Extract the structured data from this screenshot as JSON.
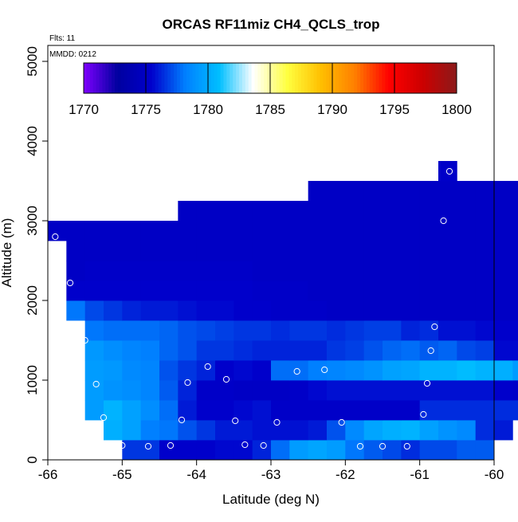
{
  "chart_data": {
    "type": "heatmap",
    "title": "ORCAS RF11miz CH4_QCLS_trop",
    "annotations": [
      "Flts: 11",
      "MMDD: 0212"
    ],
    "xlabel": "Latitude (deg N)",
    "ylabel": "Altitude (m)",
    "xlim": [
      -66,
      -60
    ],
    "ylim": [
      0,
      5200
    ],
    "x_ticks": [
      -66,
      -65,
      -64,
      -63,
      -62,
      -61,
      -60
    ],
    "y_ticks": [
      0,
      1000,
      2000,
      3000,
      4000,
      5000
    ],
    "grid": false,
    "colorbar": {
      "range": [
        1770,
        1800
      ],
      "ticks": [
        1770,
        1775,
        1780,
        1785,
        1790,
        1795,
        1800
      ],
      "stops": [
        "#7f00ff",
        "#00009f",
        "#0000cc",
        "#0080ff",
        "#00bfff",
        "#ffffff",
        "#ffff40",
        "#ffbf00",
        "#ff7f00",
        "#ff0000",
        "#cc0000",
        "#8b1a1a"
      ]
    },
    "cell_width_deg": 0.25,
    "cell_height_m": 250,
    "rows": [
      {
        "alt_start": 0,
        "lat_start": -65,
        "values": [
          1776.6,
          1776.6,
          1775.4,
          1775.4,
          1775.4,
          1775.6,
          1775.6,
          1776.2,
          1777.8,
          1779.4,
          1779.8,
          1779.4,
          1778.0,
          1777.4,
          1777.0,
          1776.4,
          1777.0,
          1777.0,
          1777.4,
          1777.4
        ]
      },
      {
        "alt_start": 250,
        "lat_start": -65.25,
        "values": [
          1780.2,
          1779.6,
          1778.2,
          1778.0,
          1777.2,
          1776.6,
          1776.0,
          1776.0,
          1775.8,
          1775.8,
          1775.8,
          1776.0,
          1777.2,
          1778.6,
          1779.8,
          1780.2,
          1780.4,
          1779.6,
          1779.0,
          1778.6,
          1776.4,
          1776.0
        ]
      },
      {
        "alt_start": 500,
        "lat_start": -65.5,
        "values": [
          1779.4,
          1780.4,
          1779.6,
          1778.8,
          1777.8,
          1776.0,
          1775.4,
          1775.4,
          1775.6,
          1775.8,
          1775.2,
          1775.2,
          1775.2,
          1775.2,
          1775.2,
          1775.2,
          1775.2,
          1775.2,
          1776.4,
          1776.4,
          1776.4,
          1776.4,
          1776.4,
          1776.4,
          1776.4,
          1776.2,
          1776.4
        ]
      },
      {
        "alt_start": 750,
        "lat_start": -65.5,
        "values": [
          1779.4,
          1779.0,
          1778.8,
          1778.4,
          1777.4,
          1776.2,
          1775.2,
          1775.2,
          1775.0,
          1775.0,
          1775.0,
          1775.2,
          1775.6,
          1775.8,
          1775.8,
          1775.8,
          1775.8,
          1775.8,
          1775.8,
          1775.8,
          1775.8,
          1775.8,
          1775.4,
          1775.2,
          1775.2,
          1775.0,
          1775.0,
          1775.0
        ]
      },
      {
        "alt_start": 1000,
        "lat_start": -65.5,
        "values": [
          1779.4,
          1779.2,
          1778.6,
          1778.4,
          1777.2,
          1776.6,
          1776.2,
          1775.4,
          1775.6,
          1775.4,
          1777.8,
          1777.8,
          1778.2,
          1778.4,
          1778.6,
          1779.0,
          1779.6,
          1779.8,
          1780.4,
          1780.4,
          1780.8,
          1780.4,
          1780.2,
          1779.4,
          1778.0,
          1777.2,
          1776.2,
          1775.2
        ]
      },
      {
        "alt_start": 1250,
        "lat_start": -65.5,
        "values": [
          1779.2,
          1778.8,
          1778.4,
          1778.2,
          1777.6,
          1777.2,
          1776.6,
          1776.6,
          1776.4,
          1776.2,
          1776.2,
          1776.2,
          1776.2,
          1776.6,
          1776.8,
          1777.2,
          1777.6,
          1777.8,
          1777.4,
          1777.6,
          1777.0,
          1776.8,
          1775.6,
          1775.6,
          1775.4,
          1775.2,
          1775.0,
          1775.0,
          1775.0
        ]
      },
      {
        "alt_start": 1500,
        "lat_start": -65.5,
        "values": [
          1778.0,
          1777.8,
          1777.8,
          1777.8,
          1777.6,
          1777.2,
          1777.0,
          1776.8,
          1776.6,
          1776.6,
          1776.4,
          1776.6,
          1776.6,
          1776.4,
          1776.6,
          1776.8,
          1776.8,
          1776.2,
          1776.4,
          1775.8,
          1775.8,
          1775.6,
          1775.4,
          1775.4,
          1775.2,
          1775.2,
          1775.0,
          1775.0,
          1775.0
        ]
      },
      {
        "alt_start": 1750,
        "lat_start": -65.75,
        "values": [
          1778.0,
          1777.0,
          1776.6,
          1776.2,
          1776.0,
          1776.0,
          1775.8,
          1775.6,
          1775.6,
          1775.4,
          1775.4,
          1775.2,
          1775.2,
          1775.2,
          1775.0,
          1775.0,
          1775.0,
          1775.0,
          1775.0,
          1775.0,
          1775.0,
          1775.0,
          1775.0,
          1775.0,
          1775.0,
          1775.0,
          1775.0,
          1775.0,
          1775.0,
          1775.0
        ]
      },
      {
        "alt_start": 2000,
        "lat_start": -65.75,
        "values": [
          1775.4,
          1775.4,
          1775.4,
          1775.4,
          1775.4,
          1775.4,
          1775.4,
          1775.4,
          1775.4,
          1775.4,
          1775.2,
          1775.2,
          1775.2,
          1775.0,
          1775.0,
          1775.0,
          1775.0,
          1775.0,
          1775.0,
          1775.0,
          1775.0,
          1775.0,
          1775.0,
          1775.0,
          1775.0,
          1775.0,
          1775.0,
          1775.0,
          1775.0,
          1775.0
        ]
      },
      {
        "alt_start": 2250,
        "lat_start": -65.75,
        "values": [
          1775.0,
          1775.2,
          1775.2,
          1775.2,
          1775.2,
          1775.2,
          1775.2,
          1775.2,
          1775.2,
          1775.2,
          1775.0,
          1775.0,
          1775.0,
          1775.0,
          1775.0,
          1775.0,
          1775.0,
          1775.0,
          1775.0,
          1775.0,
          1775.0,
          1775.0,
          1775.0,
          1775.0,
          1775.0,
          1775.0,
          1775.0,
          1775.0,
          1775.0,
          1775.0
        ]
      },
      {
        "alt_start": 2500,
        "lat_start": -65.75,
        "values": [
          1775.0,
          1775.0,
          1775.0,
          1775.0,
          1775.0,
          1775.0,
          1775.0,
          1775.0,
          1775.0,
          1775.0,
          1775.0,
          1775.0,
          1775.0,
          1775.0,
          1775.0,
          1775.0,
          1775.0,
          1775.0,
          1775.0,
          1775.0,
          1775.0,
          1775.0,
          1775.0,
          1775.0,
          1775.0,
          1775.0,
          1775.0,
          1775.0,
          1775.0,
          1775.0
        ]
      },
      {
        "alt_start": 2750,
        "lat_start": -66,
        "values": [
          1775.0,
          1775.0,
          1775.0,
          1775.0,
          1775.0,
          1775.0,
          1775.0,
          1775.0,
          1775.0,
          1775.0,
          1775.0,
          1775.0,
          1775.0,
          1775.0,
          1775.0,
          1775.0,
          1775.0,
          1775.0,
          1775.0,
          1775.0,
          1775.0,
          1775.0,
          1775.0,
          1775.0,
          1775.0,
          1775.0,
          1775.0,
          1775.0,
          1775.0,
          1775.0,
          1775.0
        ]
      },
      {
        "alt_start": 3000,
        "lat_start": -64.25,
        "values": [
          1775.0,
          1775.0,
          1775.0,
          1775.0,
          1775.0,
          1775.0,
          1775.0,
          1775.0,
          1775.0,
          1775.0,
          1775.0,
          1775.0,
          1775.0,
          1775.0,
          1775.0,
          1775.0,
          1775.0,
          1775.0,
          1775.0,
          1775.0,
          1775.0,
          1775.0,
          1775.0,
          1775.0,
          1775.0,
          1775.0,
          1775.0,
          1775.0,
          1775.0,
          1775.0,
          1775.0,
          1775.0,
          1775.0,
          1775.0,
          1775.0
        ]
      },
      {
        "alt_start": 3250,
        "lat_start": -62.5,
        "values": [
          1775.0,
          1775.0,
          1775.0,
          1775.0,
          1775.0,
          1775.0,
          1775.0,
          1775.0,
          1775.0,
          1775.0,
          1775.0,
          1775.0,
          1775.0,
          1775.0,
          1775.0,
          1775.0,
          1775.0,
          1775.0,
          1775.0,
          1775.0,
          1775.0,
          1775.0,
          1775.0,
          1775.0,
          1775.0,
          1775.0,
          1775.0,
          1775.0,
          1775.0
        ]
      },
      {
        "alt_start": 3500,
        "lat_start": -60.75,
        "values": [
          1775.2
        ]
      }
    ],
    "points": [
      {
        "x": -65.9,
        "y": 2800
      },
      {
        "x": -65.7,
        "y": 2220
      },
      {
        "x": -65.5,
        "y": 1500
      },
      {
        "x": -65.35,
        "y": 950
      },
      {
        "x": -65.25,
        "y": 530
      },
      {
        "x": -65.0,
        "y": 180
      },
      {
        "x": -64.65,
        "y": 170
      },
      {
        "x": -64.35,
        "y": 180
      },
      {
        "x": -64.2,
        "y": 500
      },
      {
        "x": -64.12,
        "y": 970
      },
      {
        "x": -63.85,
        "y": 1170
      },
      {
        "x": -63.6,
        "y": 1010
      },
      {
        "x": -63.48,
        "y": 490
      },
      {
        "x": -63.35,
        "y": 190
      },
      {
        "x": -63.1,
        "y": 180
      },
      {
        "x": -62.92,
        "y": 470
      },
      {
        "x": -62.65,
        "y": 1110
      },
      {
        "x": -62.28,
        "y": 1130
      },
      {
        "x": -62.05,
        "y": 470
      },
      {
        "x": -61.8,
        "y": 170
      },
      {
        "x": -61.5,
        "y": 170
      },
      {
        "x": -61.17,
        "y": 170
      },
      {
        "x": -60.95,
        "y": 570
      },
      {
        "x": -60.9,
        "y": 960
      },
      {
        "x": -60.85,
        "y": 1370
      },
      {
        "x": -60.8,
        "y": 1670
      },
      {
        "x": -60.68,
        "y": 3000
      },
      {
        "x": -60.6,
        "y": 3620
      }
    ]
  }
}
